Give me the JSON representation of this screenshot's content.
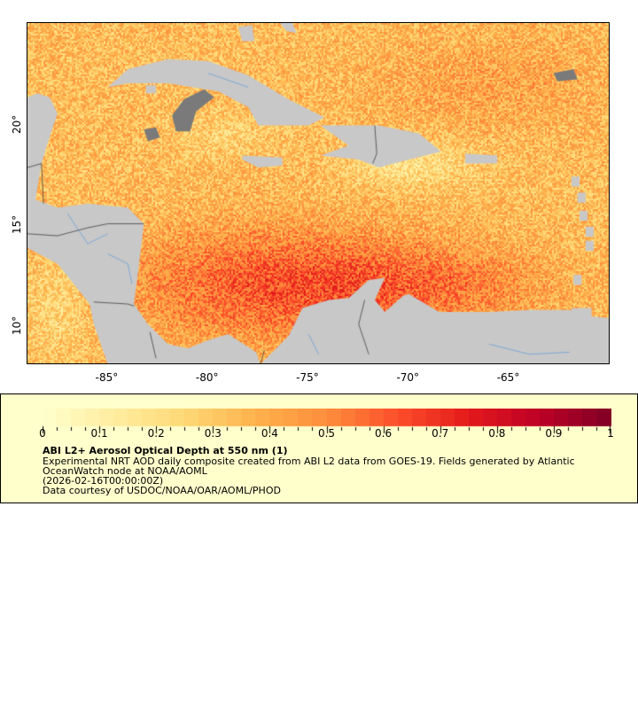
{
  "map": {
    "lon_range": [
      -89,
      -60
    ],
    "lat_range": [
      8,
      25
    ],
    "x_ticks": [
      "-85°",
      "-80°",
      "-75°",
      "-70°",
      "-65°"
    ],
    "x_tick_values": [
      -85,
      -80,
      -75,
      -70,
      -65
    ],
    "y_ticks": [
      "20°",
      "15°",
      "10°"
    ],
    "y_tick_values": [
      20,
      15,
      10
    ],
    "land_color": "#c8c8c8",
    "cloud_color": "#7a7a7a",
    "border_color": "#404040",
    "river_color": "#6a9fd8"
  },
  "legend": {
    "colorbar_ticks": [
      "0",
      "0.1",
      "0.2",
      "0.3",
      "0.4",
      "0.5",
      "0.6",
      "0.7",
      "0.8",
      "0.9",
      "1"
    ],
    "range": [
      0,
      1
    ],
    "colors": [
      "#ffffcc",
      "#ffeda0",
      "#fed976",
      "#feb24c",
      "#fd8d3c",
      "#fc4e2a",
      "#e31a1c",
      "#bd0026",
      "#800026"
    ],
    "title": "ABI L2+ Aerosol Optical Depth at 550 nm (1)",
    "line1": "Experimental NRT AOD daily composite created from ABI L2 data from GOES-19. Fields generated by Atlantic",
    "line2": "OceanWatch node at NOAA/AOML",
    "time": "(2026-02-16T00:00:00Z)",
    "credit": "Data courtesy of USDOC/NOAA/OAR/AOML/PHOD"
  }
}
